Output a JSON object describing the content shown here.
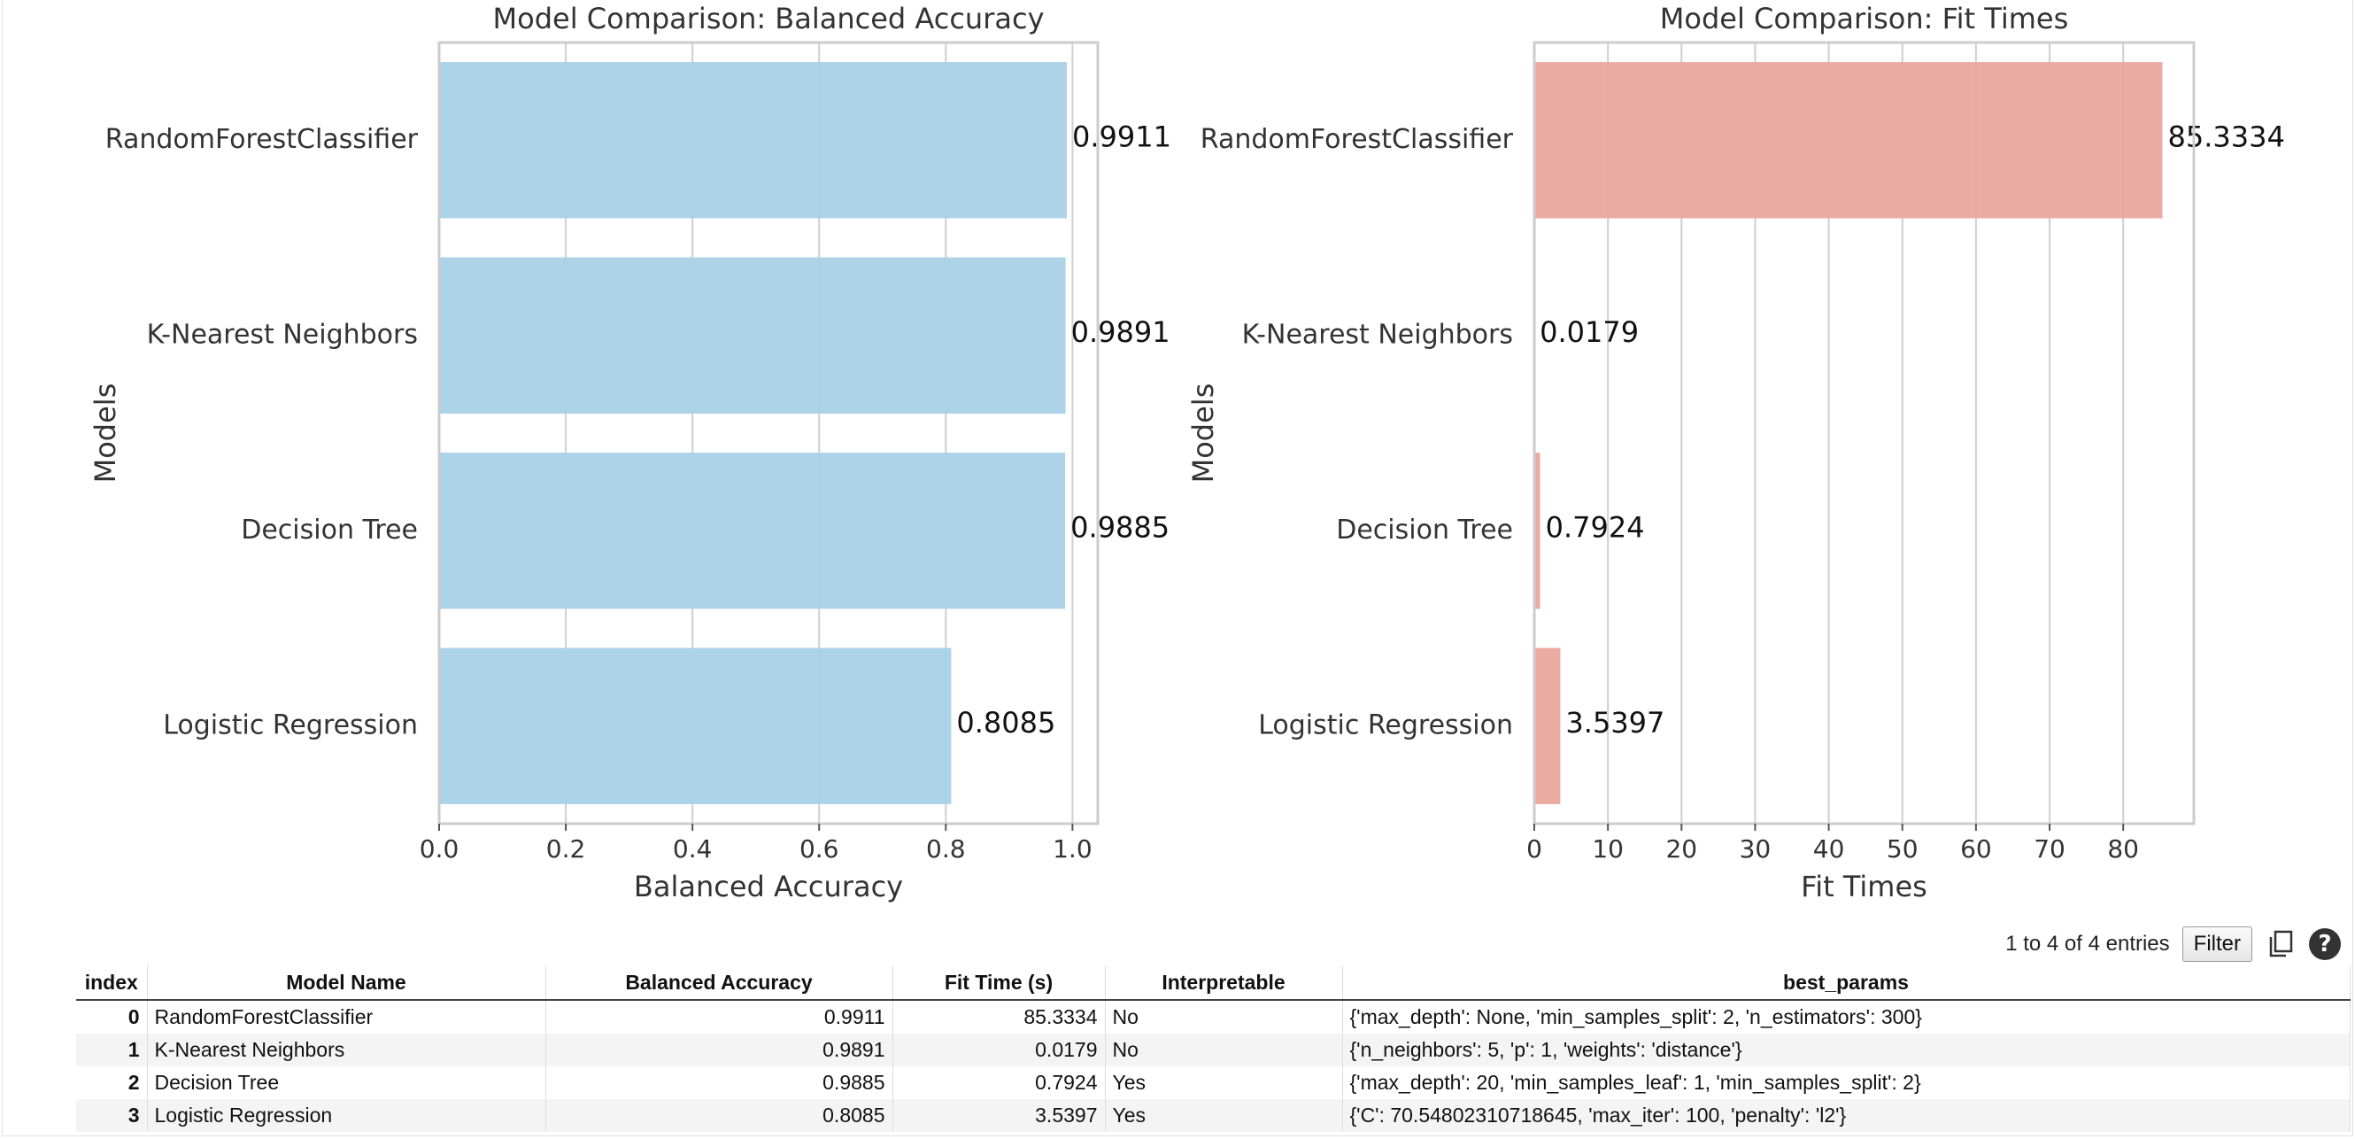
{
  "chart_data": [
    {
      "type": "bar",
      "orientation": "horizontal",
      "title": "Model Comparison: Balanced Accuracy",
      "xlabel": "Balanced Accuracy",
      "ylabel": "Models",
      "categories": [
        "RandomForestClassifier",
        "K-Nearest Neighbors",
        "Decision Tree",
        "Logistic Regression"
      ],
      "values": [
        0.9911,
        0.9891,
        0.9885,
        0.8085
      ],
      "data_labels": [
        "0.9911",
        "0.9891",
        "0.9885",
        "0.8085"
      ],
      "xlim": [
        0,
        1.04
      ],
      "xticks": [
        0.0,
        0.2,
        0.4,
        0.6,
        0.8,
        1.0
      ],
      "xtick_labels": [
        "0.0",
        "0.2",
        "0.4",
        "0.6",
        "0.8",
        "1.0"
      ],
      "grid": "vertical",
      "color": "#a8d1e7"
    },
    {
      "type": "bar",
      "orientation": "horizontal",
      "title": "Model Comparison: Fit Times",
      "xlabel": "Fit Times",
      "ylabel": "Models",
      "categories": [
        "RandomForestClassifier",
        "K-Nearest Neighbors",
        "Decision Tree",
        "Logistic Regression"
      ],
      "values": [
        85.3334,
        0.0179,
        0.7924,
        3.5397
      ],
      "data_labels": [
        "85.3334",
        "0.0179",
        "0.7924",
        "3.5397"
      ],
      "xlim": [
        0,
        89.6
      ],
      "xticks": [
        0,
        10,
        20,
        30,
        40,
        50,
        60,
        70,
        80
      ],
      "xtick_labels": [
        "0",
        "10",
        "20",
        "30",
        "40",
        "50",
        "60",
        "70",
        "80"
      ],
      "grid": "vertical",
      "color": "#e8a69d"
    }
  ],
  "table": {
    "summary": "1 to 4 of 4 entries",
    "filter_label": "Filter",
    "help_label": "?",
    "columns": [
      "index",
      "Model Name",
      "Balanced Accuracy",
      "Fit Time (s)",
      "Interpretable",
      "best_params"
    ],
    "rows": [
      [
        "0",
        "RandomForestClassifier",
        "0.9911",
        "85.3334",
        "No",
        "{'max_depth': None, 'min_samples_split': 2, 'n_estimators': 300}"
      ],
      [
        "1",
        "K-Nearest Neighbors",
        "0.9891",
        "0.0179",
        "No",
        "{'n_neighbors': 5, 'p': 1, 'weights': 'distance'}"
      ],
      [
        "2",
        "Decision Tree",
        "0.9885",
        "0.7924",
        "Yes",
        "{'max_depth': 20, 'min_samples_leaf': 1, 'min_samples_split': 2}"
      ],
      [
        "3",
        "Logistic Regression",
        "0.8085",
        "3.5397",
        "Yes",
        "{'C': 70.54802310718645, 'max_iter': 100, 'penalty': 'l2'}"
      ]
    ]
  },
  "icons": {
    "copy": "copy-icon",
    "help": "help-icon"
  }
}
